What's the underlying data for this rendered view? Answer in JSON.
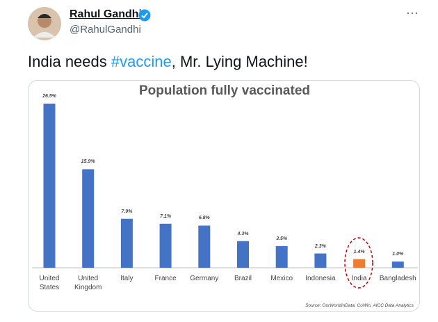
{
  "tweet": {
    "name": "Rahul Gandhi",
    "handle": "@RahulGandhi",
    "more": "···",
    "text": [
      "India needs ",
      "#vaccine",
      ", Mr. Lying Machine!"
    ]
  },
  "chart_data": {
    "type": "bar",
    "title": "Population fully vaccinated",
    "categories": [
      "United States",
      "United Kingdom",
      "Italy",
      "France",
      "Germany",
      "Brazil",
      "Mexico",
      "Indonesia",
      "India",
      "Bangladesh"
    ],
    "values": [
      26.5,
      15.9,
      7.9,
      7.1,
      6.8,
      4.3,
      3.5,
      2.3,
      1.4,
      1.0
    ],
    "value_labels": [
      "26.5%",
      "15.9%",
      "7.9%",
      "7.1%",
      "6.8%",
      "4.3%",
      "3.5%",
      "2.3%",
      "1.4%",
      "1.0%"
    ],
    "colors": [
      "#4472c4",
      "#4472c4",
      "#4472c4",
      "#4472c4",
      "#4472c4",
      "#4472c4",
      "#4472c4",
      "#4472c4",
      "#ed7d31",
      "#4472c4"
    ],
    "source": "Source: OurWorldinData, CoWin, AICC Data Analytics"
  }
}
